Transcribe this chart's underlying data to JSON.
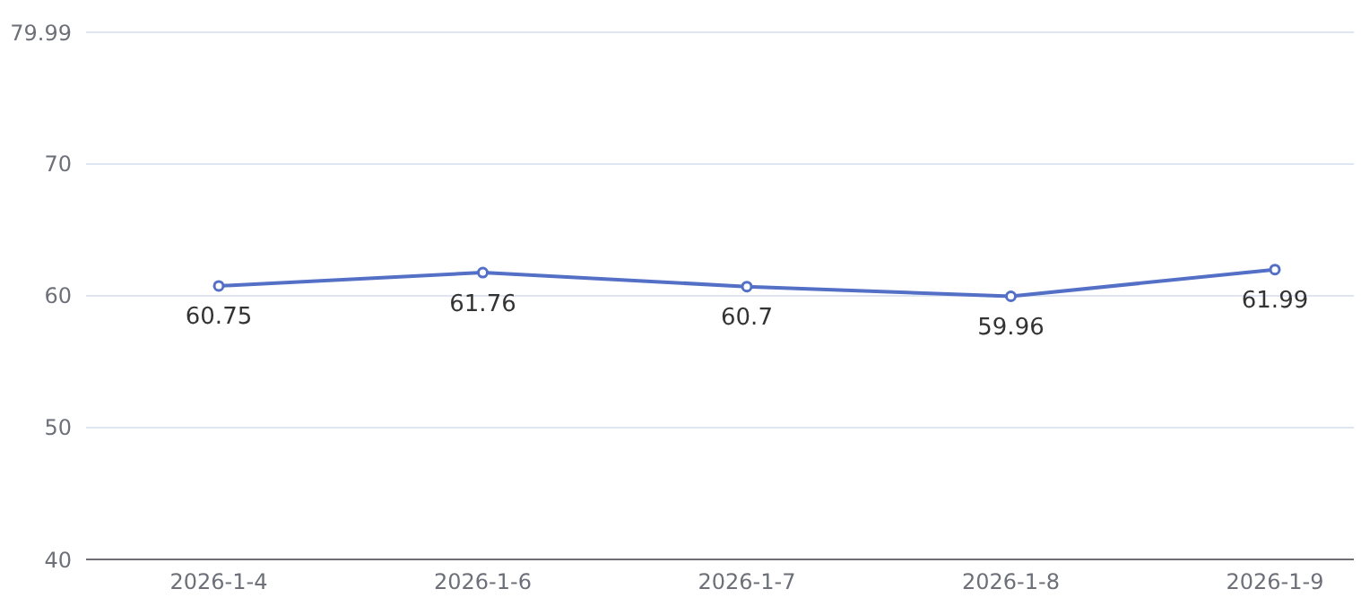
{
  "chart_data": {
    "type": "line",
    "categories": [
      "2026-1-4",
      "2026-1-6",
      "2026-1-7",
      "2026-1-8",
      "2026-1-9"
    ],
    "series": [
      {
        "color": "#5470c6",
        "values": [
          60.75,
          61.76,
          60.7,
          59.96,
          61.99
        ]
      }
    ],
    "ylim": [
      40,
      79.99
    ],
    "yticks": [
      40,
      50,
      60,
      70,
      79.99
    ],
    "grid": "y",
    "marker": "circle",
    "line_style": "solid",
    "data_labels": true
  }
}
